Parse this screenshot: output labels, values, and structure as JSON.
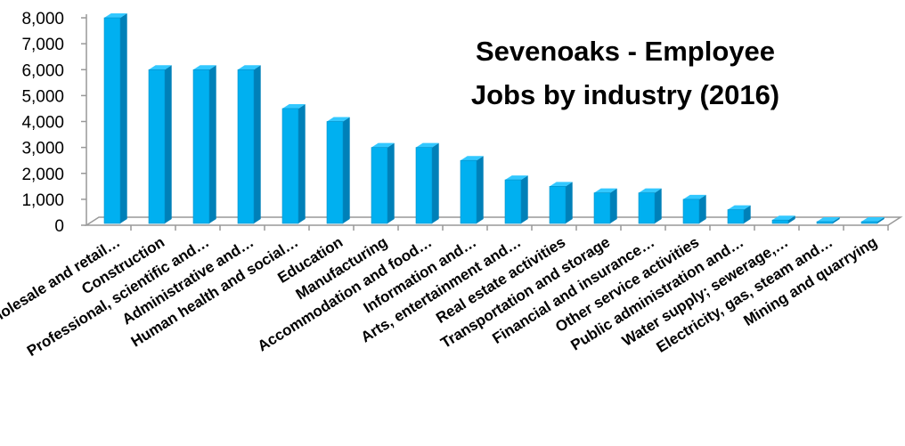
{
  "chart_data": {
    "type": "bar",
    "title_lines": [
      "Sevenoaks - Employee",
      "Jobs by industry (2016)"
    ],
    "categories": [
      "Wholesale and retail…",
      "Construction",
      "Professional, scientific and…",
      "Administrative and…",
      "Human health and social…",
      "Education",
      "Manufacturing",
      "Accommodation and food…",
      "Information and…",
      "Arts, entertainment and…",
      "Real estate activities",
      "Transportation and storage",
      "Financial and insurance…",
      "Other service activities",
      "Public administration and…",
      "Water supply; sewerage,…",
      "Electricity, gas, steam and…",
      "Mining and quarrying"
    ],
    "values": [
      8000,
      6000,
      6000,
      6000,
      4500,
      4000,
      3000,
      3000,
      2500,
      1750,
      1500,
      1250,
      1250,
      1000,
      600,
      200,
      0,
      0
    ],
    "ylim": [
      0,
      8000
    ],
    "yticks": [
      0,
      1000,
      2000,
      3000,
      4000,
      5000,
      6000,
      7000,
      8000
    ],
    "ytick_labels": [
      "0",
      "1,000",
      "2,000",
      "3,000",
      "4,000",
      "5,000",
      "6,000",
      "7,000",
      "8,000"
    ],
    "bar_color": "#00B0F0",
    "bar_side_color": "#0080B8",
    "bar_top_color": "#33C8FF",
    "axis_color": "#999999",
    "grid": false,
    "legend": "none"
  }
}
